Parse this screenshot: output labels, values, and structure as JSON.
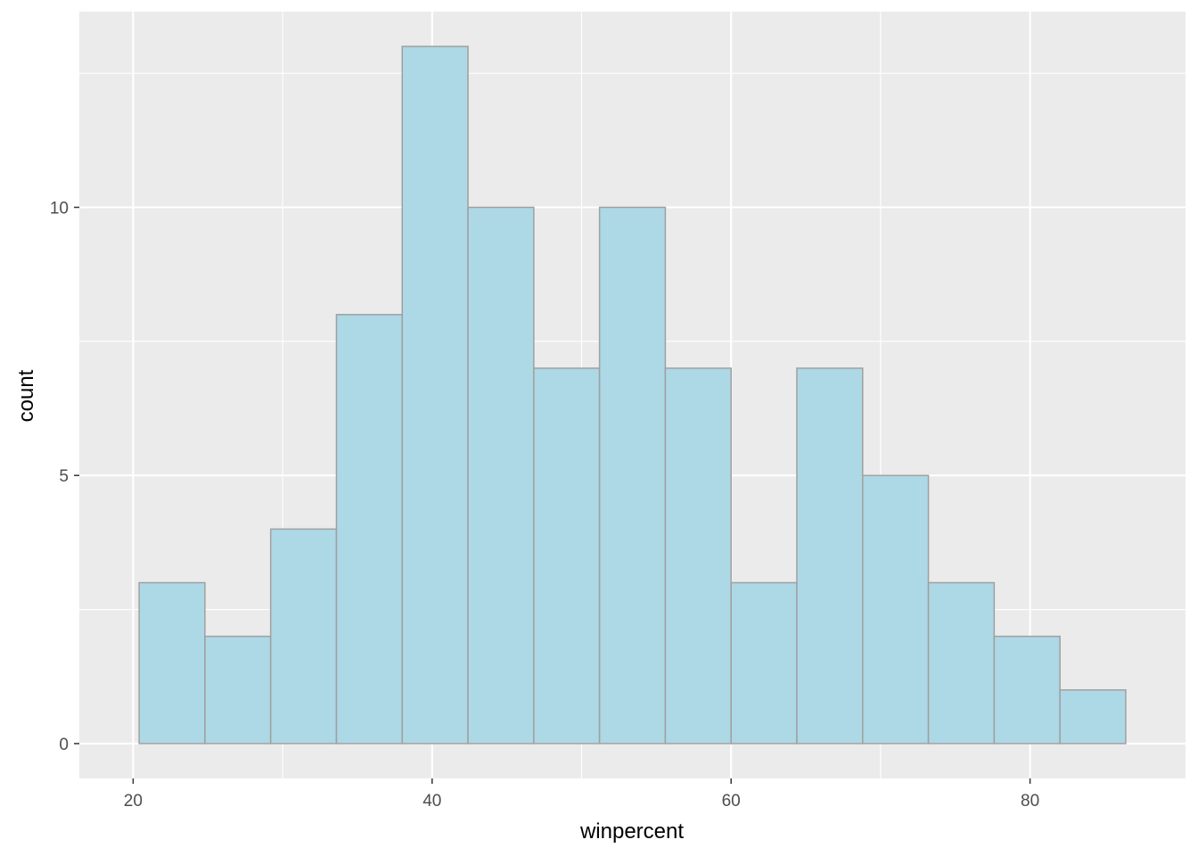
{
  "chart_data": {
    "type": "bar",
    "subtype": "histogram",
    "title": "",
    "xlabel": "winpercent",
    "ylabel": "count",
    "bins": [
      {
        "x0": 20.4,
        "x1": 24.8,
        "count": 3
      },
      {
        "x0": 24.8,
        "x1": 29.2,
        "count": 2
      },
      {
        "x0": 29.2,
        "x1": 33.6,
        "count": 4
      },
      {
        "x0": 33.6,
        "x1": 38.0,
        "count": 8
      },
      {
        "x0": 38.0,
        "x1": 42.4,
        "count": 13
      },
      {
        "x0": 42.4,
        "x1": 46.8,
        "count": 10
      },
      {
        "x0": 46.8,
        "x1": 51.2,
        "count": 7
      },
      {
        "x0": 51.2,
        "x1": 55.6,
        "count": 10
      },
      {
        "x0": 55.6,
        "x1": 60.0,
        "count": 7
      },
      {
        "x0": 60.0,
        "x1": 64.4,
        "count": 3
      },
      {
        "x0": 64.4,
        "x1": 68.8,
        "count": 7
      },
      {
        "x0": 68.8,
        "x1": 73.2,
        "count": 5
      },
      {
        "x0": 73.2,
        "x1": 77.6,
        "count": 3
      },
      {
        "x0": 77.6,
        "x1": 82.0,
        "count": 2
      },
      {
        "x0": 82.0,
        "x1": 86.4,
        "count": 1
      }
    ],
    "xlim": [
      16.4,
      90.4
    ],
    "ylim": [
      -0.65,
      13.65
    ],
    "x_ticks": [
      20,
      40,
      60,
      80
    ],
    "x_tick_labels": [
      "20",
      "40",
      "60",
      "80"
    ],
    "x_minor": [
      30,
      50,
      70
    ],
    "y_ticks": [
      0,
      5,
      10
    ],
    "y_tick_labels": [
      "0",
      "5",
      "10"
    ],
    "y_minor": [
      2.5,
      7.5,
      12.5
    ],
    "grid": true,
    "legend": "none",
    "colors": {
      "panel_bg": "#ebebeb",
      "grid": "#ffffff",
      "bar_fill": "#add8e6",
      "bar_stroke": "#a0a0a0",
      "tick_mark": "#333333"
    }
  }
}
